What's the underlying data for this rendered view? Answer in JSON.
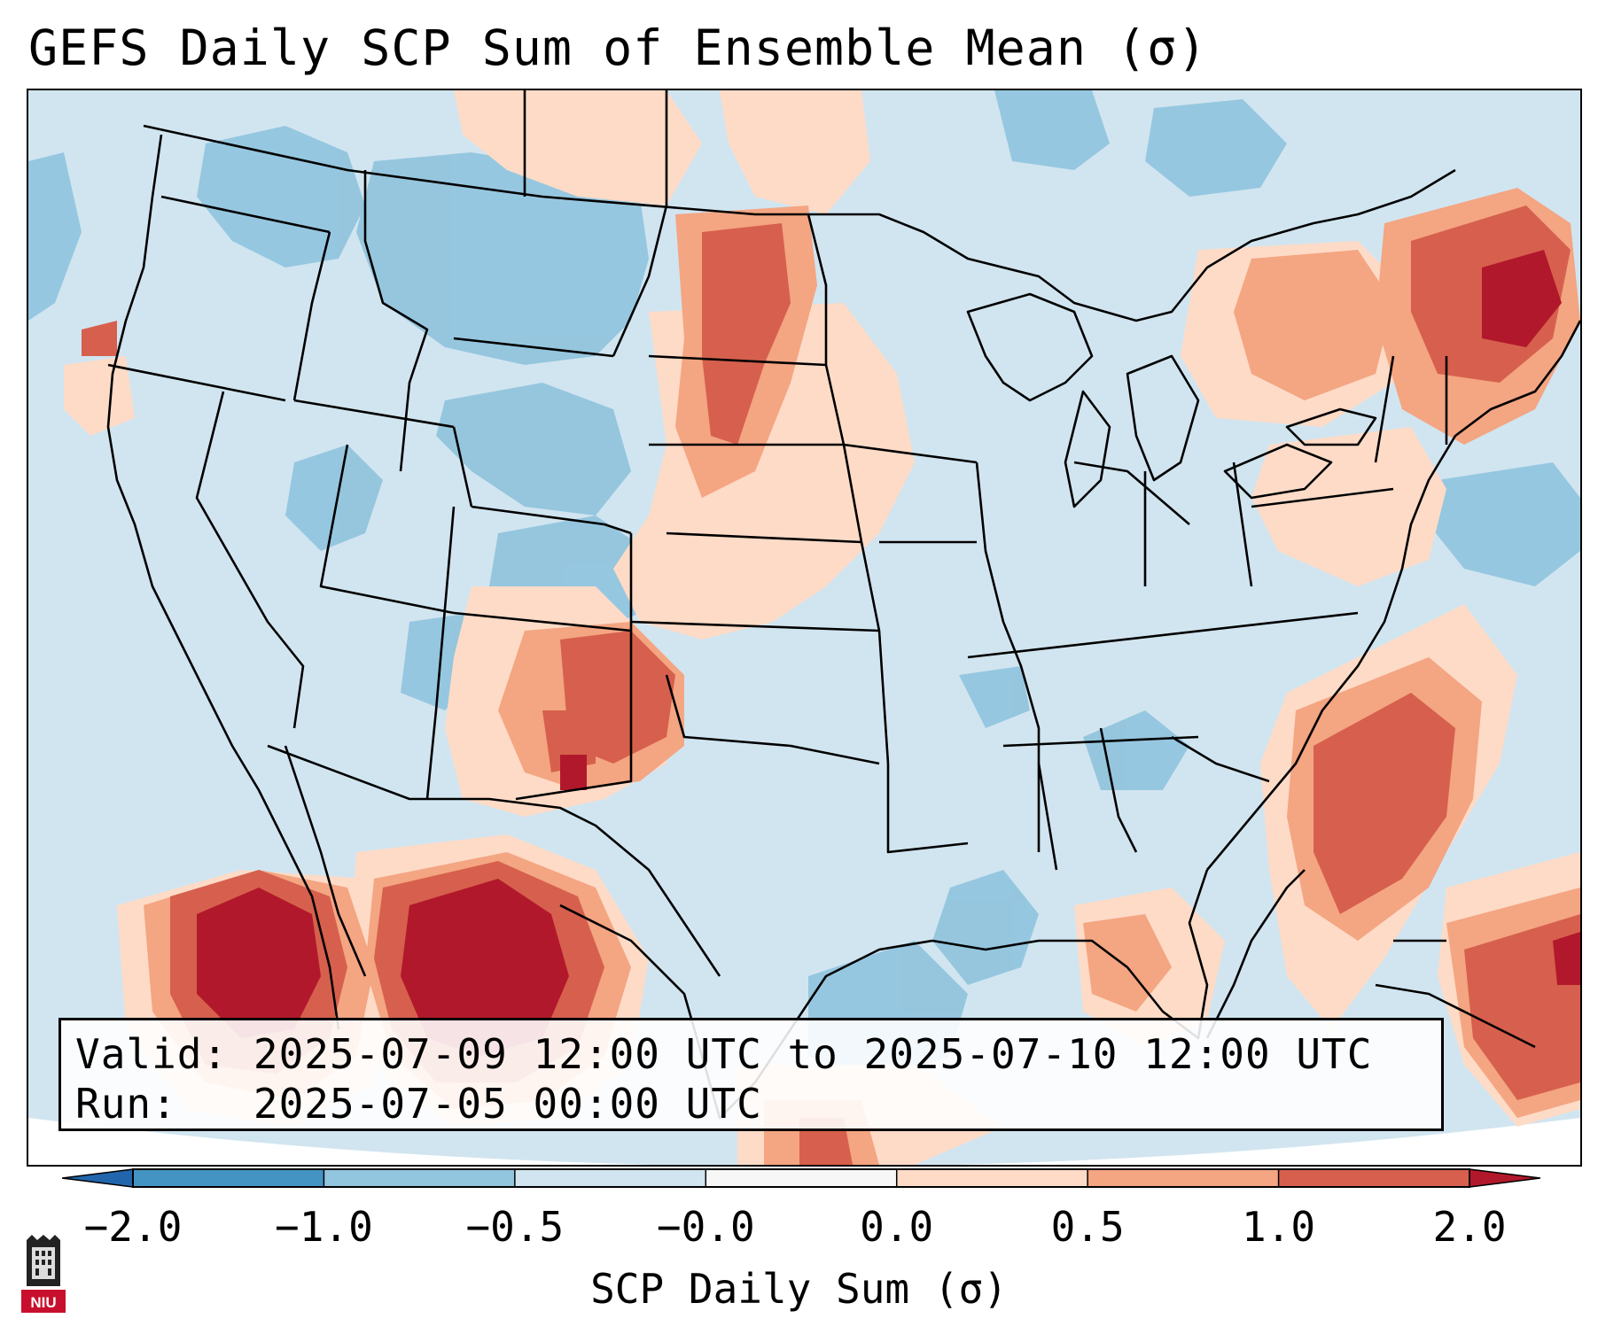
{
  "title": "GEFS Daily SCP Sum of Ensemble Mean (σ)",
  "info": {
    "valid_label": "Valid:",
    "valid_value": "2025-07-09 12:00 UTC to 2025-07-10 12:00 UTC",
    "run_label": "Run:",
    "run_value": "2025-07-05 00:00 UTC"
  },
  "colorbar": {
    "label": "SCP Daily Sum (σ)",
    "tick_labels": [
      "−2.0",
      "−1.0",
      "−0.5",
      "−0.0",
      "0.0",
      "0.5",
      "1.0",
      "2.0"
    ],
    "bins": [
      {
        "lower": -2.0,
        "upper": -1.0,
        "color": "#4393c3"
      },
      {
        "lower": -1.0,
        "upper": -0.5,
        "color": "#92c5de"
      },
      {
        "lower": -0.5,
        "upper": -0.0,
        "color": "#d1e5f0"
      },
      {
        "lower": -0.0,
        "upper": 0.0,
        "color": "#f7f7f7"
      },
      {
        "lower": 0.0,
        "upper": 0.5,
        "color": "#fddbc7"
      },
      {
        "lower": 0.5,
        "upper": 1.0,
        "color": "#f4a582"
      },
      {
        "lower": 1.0,
        "upper": 2.0,
        "color": "#d6604d"
      }
    ],
    "under_color": "#2166ac",
    "over_color": "#b2182b"
  },
  "colors": {
    "ocean_background": "#d1e5f0",
    "borders": "#000000",
    "max_red": "#b2182b"
  },
  "logo": {
    "text": "NIU",
    "color": "#c8102e"
  }
}
